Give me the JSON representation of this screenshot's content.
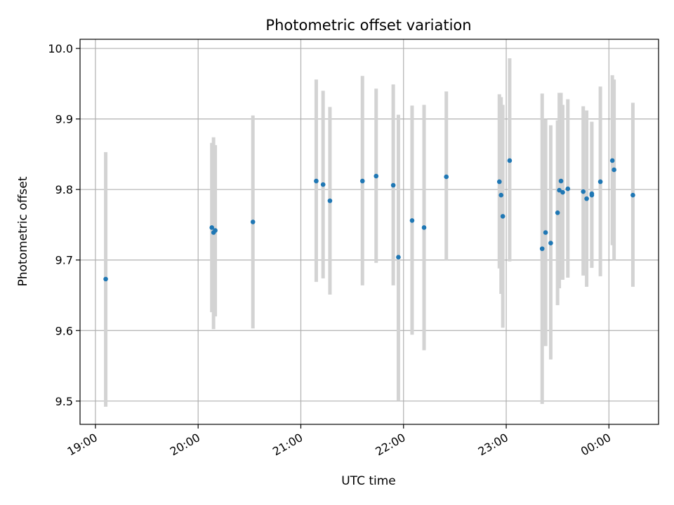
{
  "chart_data": {
    "type": "scatter",
    "title": "Photometric offset variation",
    "xlabel": "UTC time",
    "ylabel": "Photometric offset",
    "x_axis": "time",
    "xlim": [
      "18:51",
      "00:29"
    ],
    "ylim": [
      9.467,
      10.013
    ],
    "grid": true,
    "x_ticks": [
      "19:00",
      "20:00",
      "21:00",
      "22:00",
      "23:00",
      "00:00"
    ],
    "y_ticks": [
      "9.5",
      "9.6",
      "9.7",
      "9.8",
      "9.9",
      "10.0"
    ],
    "point_color": "#1f77b4",
    "errorbar_color": "#d3d3d3",
    "points": [
      {
        "t": "19:06",
        "y": 9.673,
        "lo": 9.492,
        "hi": 9.853
      },
      {
        "t": "20:08",
        "y": 9.746,
        "lo": 9.626,
        "hi": 9.866
      },
      {
        "t": "20:09",
        "y": 9.739,
        "lo": 9.602,
        "hi": 9.874
      },
      {
        "t": "20:10",
        "y": 9.742,
        "lo": 9.62,
        "hi": 9.863
      },
      {
        "t": "20:32",
        "y": 9.754,
        "lo": 9.603,
        "hi": 9.905
      },
      {
        "t": "21:09",
        "y": 9.812,
        "lo": 9.669,
        "hi": 9.956
      },
      {
        "t": "21:13",
        "y": 9.807,
        "lo": 9.674,
        "hi": 9.94
      },
      {
        "t": "21:17",
        "y": 9.784,
        "lo": 9.651,
        "hi": 9.917
      },
      {
        "t": "21:36",
        "y": 9.812,
        "lo": 9.664,
        "hi": 9.961
      },
      {
        "t": "21:44",
        "y": 9.819,
        "lo": 9.696,
        "hi": 9.943
      },
      {
        "t": "21:54",
        "y": 9.806,
        "lo": 9.664,
        "hi": 9.949
      },
      {
        "t": "21:57",
        "y": 9.704,
        "lo": 9.501,
        "hi": 9.906
      },
      {
        "t": "22:05",
        "y": 9.756,
        "lo": 9.594,
        "hi": 9.919
      },
      {
        "t": "22:12",
        "y": 9.746,
        "lo": 9.572,
        "hi": 9.92
      },
      {
        "t": "22:25",
        "y": 9.818,
        "lo": 9.699,
        "hi": 9.939
      },
      {
        "t": "22:56",
        "y": 9.811,
        "lo": 9.688,
        "hi": 9.935
      },
      {
        "t": "22:57",
        "y": 9.792,
        "lo": 9.652,
        "hi": 9.931
      },
      {
        "t": "22:58",
        "y": 9.762,
        "lo": 9.604,
        "hi": 9.92
      },
      {
        "t": "23:02",
        "y": 9.841,
        "lo": 9.698,
        "hi": 9.986
      },
      {
        "t": "23:21",
        "y": 9.716,
        "lo": 9.496,
        "hi": 9.936
      },
      {
        "t": "23:23",
        "y": 9.739,
        "lo": 9.578,
        "hi": 9.9
      },
      {
        "t": "23:26",
        "y": 9.724,
        "lo": 9.559,
        "hi": 9.891
      },
      {
        "t": "23:30",
        "y": 9.767,
        "lo": 9.636,
        "hi": 9.898
      },
      {
        "t": "23:31",
        "y": 9.799,
        "lo": 9.66,
        "hi": 9.937
      },
      {
        "t": "23:32",
        "y": 9.812,
        "lo": 9.687,
        "hi": 9.937
      },
      {
        "t": "23:33",
        "y": 9.796,
        "lo": 9.672,
        "hi": 9.92
      },
      {
        "t": "23:36",
        "y": 9.801,
        "lo": 9.675,
        "hi": 9.928
      },
      {
        "t": "23:45",
        "y": 9.797,
        "lo": 9.678,
        "hi": 9.918
      },
      {
        "t": "23:47",
        "y": 9.787,
        "lo": 9.662,
        "hi": 9.912
      },
      {
        "t": "23:50",
        "y": 9.794,
        "lo": 9.689,
        "hi": 9.896
      },
      {
        "t": "23:50",
        "y": 9.792,
        "lo": 9.689,
        "hi": 9.896
      },
      {
        "t": "23:55",
        "y": 9.811,
        "lo": 9.677,
        "hi": 9.946
      },
      {
        "t": "00:02",
        "y": 9.841,
        "lo": 9.721,
        "hi": 9.962
      },
      {
        "t": "00:03",
        "y": 9.828,
        "lo": 9.7,
        "hi": 9.956
      },
      {
        "t": "00:14",
        "y": 9.792,
        "lo": 9.662,
        "hi": 9.923
      }
    ]
  }
}
